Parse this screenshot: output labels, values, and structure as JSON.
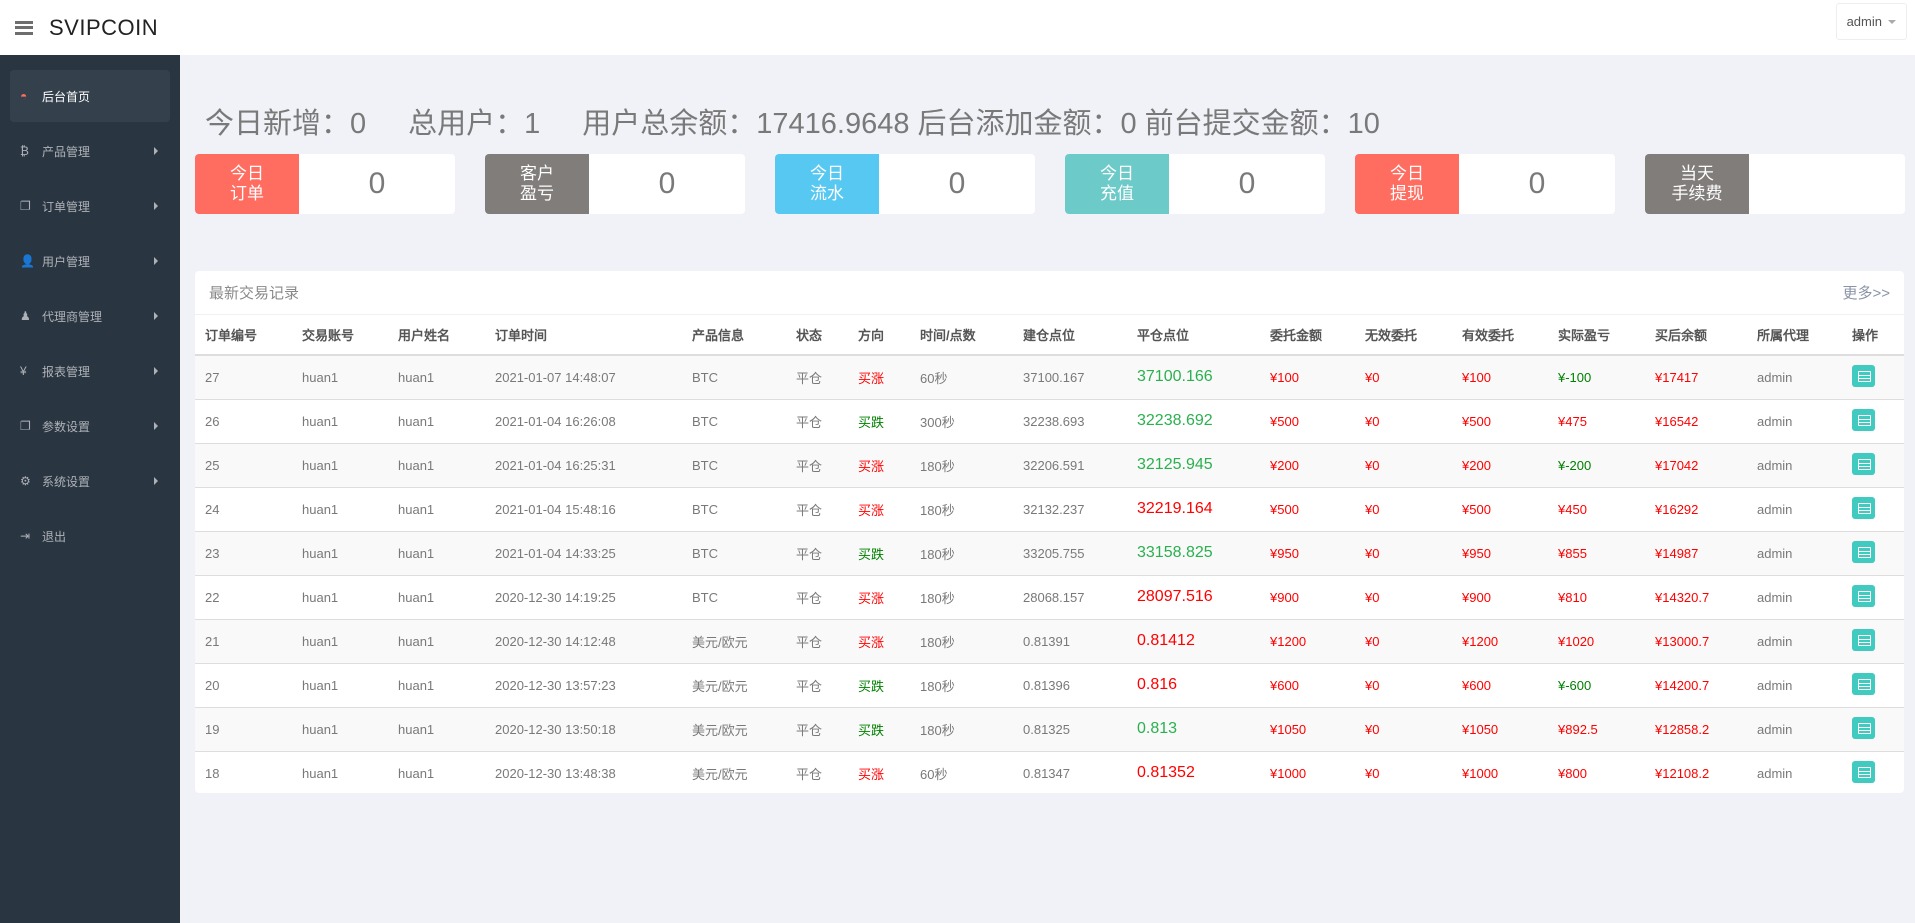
{
  "header": {
    "title": "SVIPCOIN",
    "user": "admin"
  },
  "sidebar": {
    "items": [
      {
        "label": "后台首页",
        "icon": "dashboard-icon",
        "glyph": "◓",
        "active": true,
        "arrow": false
      },
      {
        "label": "产品管理",
        "icon": "bitcoin-icon",
        "glyph": "₿",
        "arrow": true
      },
      {
        "label": "订单管理",
        "icon": "copy-icon",
        "glyph": "❐",
        "arrow": true
      },
      {
        "label": "用户管理",
        "icon": "user-icon",
        "glyph": "👤",
        "arrow": true
      },
      {
        "label": "代理商管理",
        "icon": "user-tie-icon",
        "glyph": "♟",
        "arrow": true
      },
      {
        "label": "报表管理",
        "icon": "yen-icon",
        "glyph": "¥",
        "arrow": true
      },
      {
        "label": "参数设置",
        "icon": "copy-icon",
        "glyph": "❐",
        "arrow": true
      },
      {
        "label": "系统设置",
        "icon": "gears-icon",
        "glyph": "⚙",
        "arrow": true
      },
      {
        "label": "退出",
        "icon": "sign-out-icon",
        "glyph": "⇥",
        "arrow": false
      }
    ]
  },
  "summary": {
    "today_new": "今日新增：0",
    "total_users": "总用户：1",
    "total_balance": "用户总余额：17416.9648",
    "backend_added": "后台添加金额：0",
    "frontend_submitted": "前台提交金额：10"
  },
  "cards": [
    {
      "label": "今日\n订单",
      "value": "0",
      "color": "#ff6c60"
    },
    {
      "label": "客户\n盈亏",
      "value": "0",
      "color": "#807d7b"
    },
    {
      "label": "今日\n流水",
      "value": "0",
      "color": "#57c8f2"
    },
    {
      "label": "今日\n充值",
      "value": "0",
      "color": "#6ccac9"
    },
    {
      "label": "今日\n提现",
      "value": "0",
      "color": "#ff6c60"
    },
    {
      "label": "当天\n手续费",
      "value": "",
      "color": "#807d7b"
    }
  ],
  "trades": {
    "title": "最新交易记录",
    "more": "更多>>",
    "columns": [
      "订单编号",
      "交易账号",
      "用户姓名",
      "订单时间",
      "产品信息",
      "状态",
      "方向",
      "时间/点数",
      "建仓点位",
      "平仓点位",
      "委托金额",
      "无效委托",
      "有效委托",
      "实际盈亏",
      "买后余额",
      "所属代理",
      "操作"
    ],
    "rows": [
      [
        "27",
        "huan1",
        "huan1",
        "2021-01-07 14:48:07",
        "BTC",
        "平仓",
        "买涨",
        "60秒",
        "37100.167",
        "37100.166",
        "¥100",
        "¥0",
        "¥100",
        "¥-100",
        "¥17417",
        "admin"
      ],
      [
        "26",
        "huan1",
        "huan1",
        "2021-01-04 16:26:08",
        "BTC",
        "平仓",
        "买跌",
        "300秒",
        "32238.693",
        "32238.692",
        "¥500",
        "¥0",
        "¥500",
        "¥475",
        "¥16542",
        "admin"
      ],
      [
        "25",
        "huan1",
        "huan1",
        "2021-01-04 16:25:31",
        "BTC",
        "平仓",
        "买涨",
        "180秒",
        "32206.591",
        "32125.945",
        "¥200",
        "¥0",
        "¥200",
        "¥-200",
        "¥17042",
        "admin"
      ],
      [
        "24",
        "huan1",
        "huan1",
        "2021-01-04 15:48:16",
        "BTC",
        "平仓",
        "买涨",
        "180秒",
        "32132.237",
        "32219.164",
        "¥500",
        "¥0",
        "¥500",
        "¥450",
        "¥16292",
        "admin"
      ],
      [
        "23",
        "huan1",
        "huan1",
        "2021-01-04 14:33:25",
        "BTC",
        "平仓",
        "买跌",
        "180秒",
        "33205.755",
        "33158.825",
        "¥950",
        "¥0",
        "¥950",
        "¥855",
        "¥14987",
        "admin"
      ],
      [
        "22",
        "huan1",
        "huan1",
        "2020-12-30 14:19:25",
        "BTC",
        "平仓",
        "买涨",
        "180秒",
        "28068.157",
        "28097.516",
        "¥900",
        "¥0",
        "¥900",
        "¥810",
        "¥14320.7",
        "admin"
      ],
      [
        "21",
        "huan1",
        "huan1",
        "2020-12-30 14:12:48",
        "美元/欧元",
        "平仓",
        "买涨",
        "180秒",
        "0.81391",
        "0.81412",
        "¥1200",
        "¥0",
        "¥1200",
        "¥1020",
        "¥13000.7",
        "admin"
      ],
      [
        "20",
        "huan1",
        "huan1",
        "2020-12-30 13:57:23",
        "美元/欧元",
        "平仓",
        "买跌",
        "180秒",
        "0.81396",
        "0.816",
        "¥600",
        "¥0",
        "¥600",
        "¥-600",
        "¥14200.7",
        "admin"
      ],
      [
        "19",
        "huan1",
        "huan1",
        "2020-12-30 13:50:18",
        "美元/欧元",
        "平仓",
        "买跌",
        "180秒",
        "0.81325",
        "0.813",
        "¥1050",
        "¥0",
        "¥1050",
        "¥892.5",
        "¥12858.2",
        "admin"
      ],
      [
        "18",
        "huan1",
        "huan1",
        "2020-12-30 13:48:38",
        "美元/欧元",
        "平仓",
        "买涨",
        "60秒",
        "0.81347",
        "0.81352",
        "¥1000",
        "¥0",
        "¥1000",
        "¥800",
        "¥12108.2",
        "admin"
      ]
    ]
  }
}
